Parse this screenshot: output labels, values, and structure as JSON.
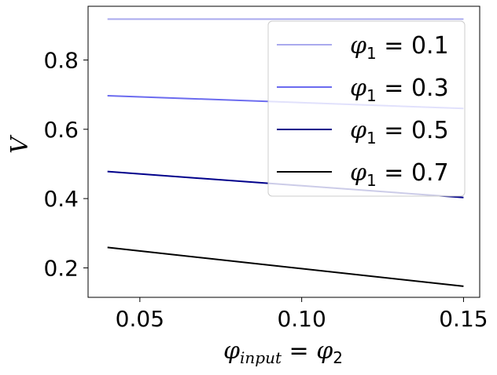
{
  "chart_data": {
    "type": "line",
    "xlabel": "φ_input = φ_2",
    "ylabel": "V",
    "xlim": [
      0.034,
      0.155
    ],
    "ylim": [
      0.115,
      0.955
    ],
    "x_ticks": [
      "0.05",
      "0.10",
      "0.15"
    ],
    "y_ticks": [
      "0.2",
      "0.4",
      "0.6",
      "0.8"
    ],
    "x_tick_values": [
      0.05,
      0.1,
      0.15
    ],
    "y_tick_values": [
      0.2,
      0.4,
      0.6,
      0.8
    ],
    "grid": false,
    "legend_position": "top-right",
    "series": [
      {
        "name": "φ1 = 0.1",
        "name_var": "φ",
        "name_sub": "1",
        "name_val": "= 0.1",
        "color": "#aaaaee",
        "x": [
          0.04,
          0.15
        ],
        "y": [
          0.918,
          0.918
        ]
      },
      {
        "name": "φ1 = 0.3",
        "name_var": "φ",
        "name_sub": "1",
        "name_val": "= 0.3",
        "color": "#6b6bef",
        "x": [
          0.04,
          0.15
        ],
        "y": [
          0.697,
          0.66
        ]
      },
      {
        "name": "φ1 = 0.5",
        "name_var": "φ",
        "name_sub": "1",
        "name_val": "= 0.5",
        "color": "#00008b",
        "x": [
          0.04,
          0.15
        ],
        "y": [
          0.478,
          0.403
        ]
      },
      {
        "name": "φ1 = 0.7",
        "name_var": "φ",
        "name_sub": "1",
        "name_val": "= 0.7",
        "color": "#000000",
        "x": [
          0.04,
          0.15
        ],
        "y": [
          0.259,
          0.147
        ]
      }
    ]
  }
}
